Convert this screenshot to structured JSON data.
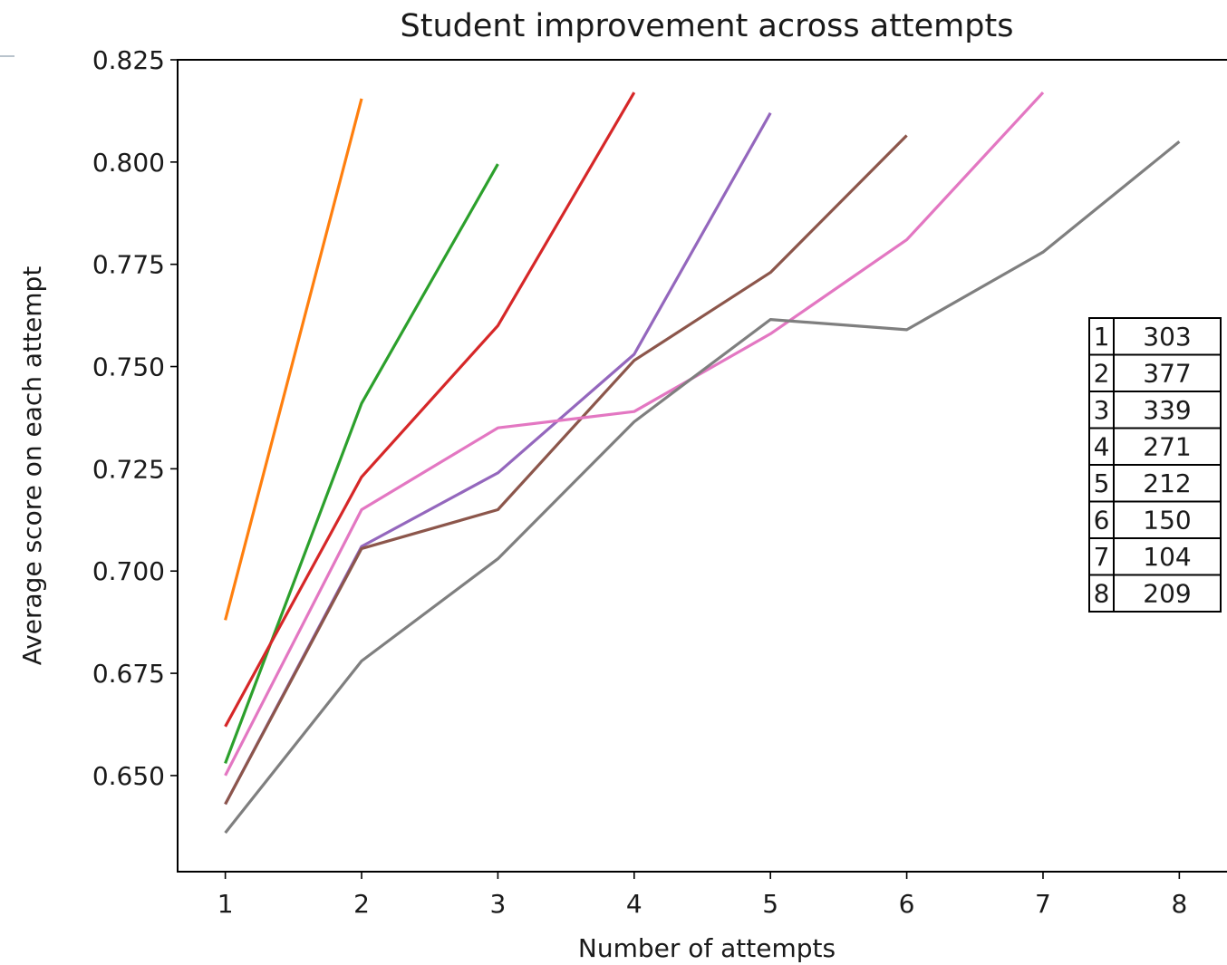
{
  "chart_data": {
    "type": "line",
    "title": "Student improvement across attempts",
    "xlabel": "Number of attempts",
    "ylabel": "Average score on each attempt",
    "xlim": [
      0.65,
      8.35
    ],
    "ylim": [
      0.6265,
      0.825
    ],
    "x_ticks": [
      "1",
      "2",
      "3",
      "4",
      "5",
      "6",
      "7",
      "8"
    ],
    "y_ticks": [
      "0.650",
      "0.675",
      "0.700",
      "0.725",
      "0.750",
      "0.775",
      "0.800",
      "0.825"
    ],
    "grid": false,
    "series": [
      {
        "color": "#ff7f0e",
        "x": [
          1,
          2
        ],
        "values": [
          0.688,
          0.8155
        ]
      },
      {
        "color": "#2ca02c",
        "x": [
          1,
          2,
          3
        ],
        "values": [
          0.653,
          0.741,
          0.7995
        ]
      },
      {
        "color": "#d62728",
        "x": [
          1,
          2,
          3,
          4
        ],
        "values": [
          0.662,
          0.723,
          0.76,
          0.817
        ]
      },
      {
        "color": "#9467bd",
        "x": [
          1,
          2,
          3,
          4,
          5
        ],
        "values": [
          0.643,
          0.706,
          0.724,
          0.753,
          0.812
        ]
      },
      {
        "color": "#8c564b",
        "x": [
          1,
          2,
          3,
          4,
          5,
          6
        ],
        "values": [
          0.643,
          0.7055,
          0.715,
          0.7515,
          0.773,
          0.8065
        ]
      },
      {
        "color": "#e377c2",
        "x": [
          1,
          2,
          3,
          4,
          5,
          6,
          7
        ],
        "values": [
          0.65,
          0.715,
          0.735,
          0.739,
          0.758,
          0.781,
          0.817
        ]
      },
      {
        "color": "#7f7f7f",
        "x": [
          1,
          2,
          3,
          4,
          5,
          6,
          7,
          8
        ],
        "values": [
          0.636,
          0.678,
          0.703,
          0.7365,
          0.7615,
          0.759,
          0.778,
          0.805
        ]
      }
    ],
    "table": {
      "position": "right",
      "rows": [
        [
          "1",
          "303"
        ],
        [
          "2",
          "377"
        ],
        [
          "3",
          "339"
        ],
        [
          "4",
          "271"
        ],
        [
          "5",
          "212"
        ],
        [
          "6",
          "150"
        ],
        [
          "7",
          "104"
        ],
        [
          "8",
          "209"
        ]
      ]
    }
  }
}
